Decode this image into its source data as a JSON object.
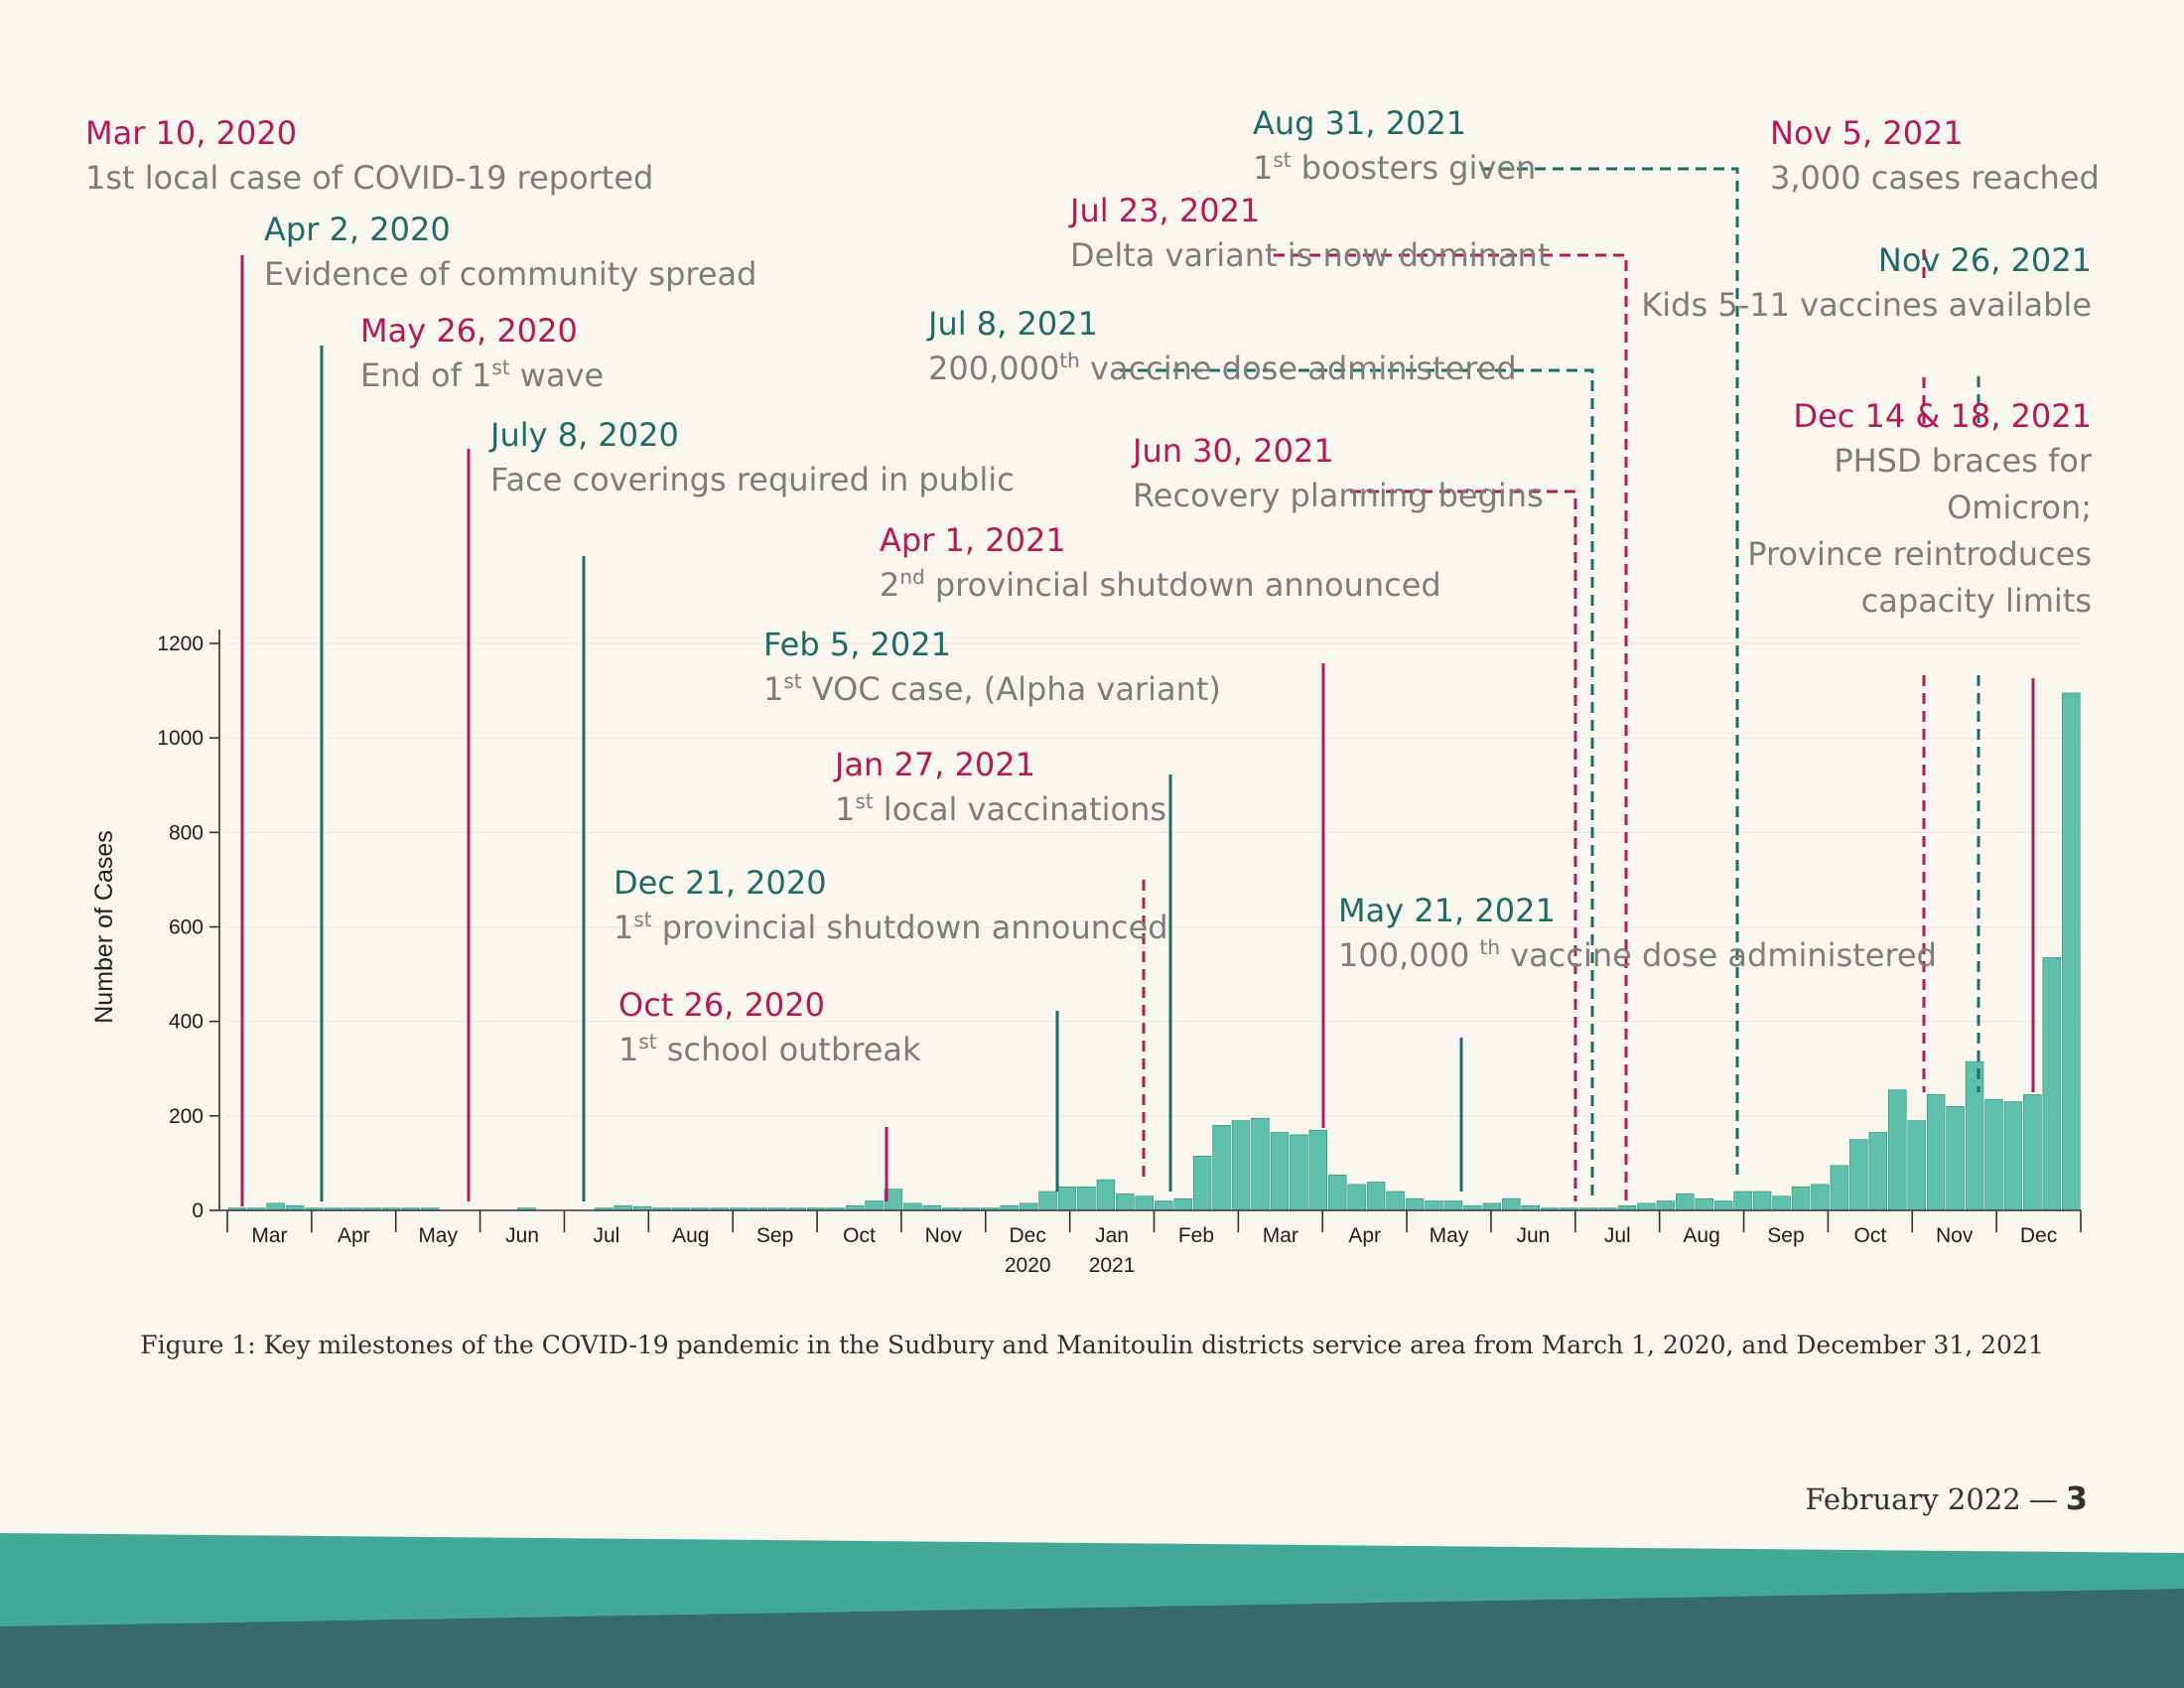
{
  "colors": {
    "magenta": "#b5195a",
    "teal": "#1f6b69",
    "bar_fill": "#5ec0aa",
    "bar_stroke": "#2a8c7b",
    "band_light": "#42a898",
    "band_dark": "#376c69"
  },
  "chart_data": {
    "type": "bar",
    "title": "",
    "xlabel": "",
    "ylabel": "Number of Cases",
    "ylim": [
      0,
      1200
    ],
    "yticks": [
      0,
      200,
      400,
      600,
      800,
      1000,
      1200
    ],
    "x_unit": "week",
    "month_labels": [
      "Mar",
      "Apr",
      "May",
      "Jun",
      "Jul",
      "Aug",
      "Sep",
      "Oct",
      "Nov",
      "Dec",
      "Jan",
      "Feb",
      "Mar",
      "Apr",
      "May",
      "Jun",
      "Jul",
      "Aug",
      "Sep",
      "Oct",
      "Nov",
      "Dec"
    ],
    "year_labels": [
      {
        "month_index": 9,
        "label": "2020"
      },
      {
        "month_index": 10,
        "label": "2021"
      }
    ],
    "values": [
      5,
      5,
      15,
      10,
      5,
      5,
      5,
      5,
      5,
      5,
      5,
      0,
      0,
      0,
      0,
      5,
      0,
      0,
      0,
      5,
      10,
      8,
      5,
      5,
      5,
      5,
      5,
      5,
      5,
      5,
      5,
      5,
      10,
      20,
      45,
      15,
      10,
      5,
      5,
      5,
      10,
      15,
      40,
      50,
      50,
      65,
      35,
      30,
      20,
      25,
      115,
      180,
      190,
      195,
      165,
      160,
      170,
      75,
      55,
      60,
      40,
      25,
      20,
      20,
      10,
      15,
      25,
      10,
      5,
      5,
      5,
      5,
      10,
      15,
      20,
      35,
      25,
      20,
      40,
      40,
      30,
      50,
      55,
      95,
      150,
      165,
      255,
      190,
      245,
      220,
      315,
      235,
      230,
      245,
      535,
      1095
    ],
    "annotations": [
      {
        "date": "Mar 10, 2020",
        "text": "1st local case of COVID-19 reported",
        "sup": "",
        "text_after": "",
        "color": "magenta"
      },
      {
        "date": "Apr 2, 2020",
        "text": "Evidence of community spread",
        "sup": "",
        "text_after": "",
        "color": "teal"
      },
      {
        "date": "May 26, 2020",
        "text": "End of 1",
        "sup": "st",
        "text_after": " wave",
        "color": "magenta"
      },
      {
        "date": "July 8, 2020",
        "text": "Face coverings required in public",
        "sup": "",
        "text_after": "",
        "color": "teal"
      },
      {
        "date": "Oct 26, 2020",
        "text": "1",
        "sup": "st",
        "text_after": " school outbreak",
        "color": "magenta"
      },
      {
        "date": "Dec 21, 2020",
        "text": "1",
        "sup": "st",
        "text_after": " provincial shutdown announced",
        "color": "teal"
      },
      {
        "date": "Jan 27, 2021",
        "text": "1",
        "sup": "st",
        "text_after": " local vaccinations",
        "color": "magenta"
      },
      {
        "date": "Feb 5, 2021",
        "text": "1",
        "sup": "st",
        "text_after": " VOC case, (Alpha variant)",
        "color": "teal"
      },
      {
        "date": "Apr 1, 2021",
        "text": "2",
        "sup": "nd",
        "text_after": " provincial shutdown announced",
        "color": "magenta"
      },
      {
        "date": "May 21, 2021",
        "text": "100,000 ",
        "sup": "th",
        "text_after": " vaccine dose administered",
        "color": "teal"
      },
      {
        "date": "Jun 30, 2021",
        "text": "Recovery planning begins",
        "sup": "",
        "text_after": "",
        "color": "magenta"
      },
      {
        "date": "Jul 8, 2021",
        "text": "200,000",
        "sup": "th",
        "text_after": " vaccine dose administered",
        "color": "teal"
      },
      {
        "date": "Jul 23, 2021",
        "text": "Delta variant is now dominant",
        "sup": "",
        "text_after": "",
        "color": "magenta"
      },
      {
        "date": "Aug 31, 2021",
        "text": "1",
        "sup": "st",
        "text_after": " boosters given",
        "color": "teal"
      },
      {
        "date": "Nov 5, 2021",
        "text": "3,000 cases reached",
        "sup": "",
        "text_after": "",
        "color": "magenta"
      },
      {
        "date": "Nov 26, 2021",
        "text": "Kids 5-11 vaccines available",
        "sup": "",
        "text_after": "",
        "color": "teal"
      },
      {
        "date": "Dec 14 & 18, 2021",
        "text_lines": [
          "PHSD braces for",
          "Omicron;",
          "Province reintroduces",
          "capacity limits"
        ],
        "color": "magenta"
      }
    ]
  },
  "caption": "Figure 1: Key milestones of the COVID-19 pandemic in the Sudbury and Manitoulin districts service area from March 1, 2020, and December 31, 2021",
  "footer": {
    "date": "February 2022",
    "separator": "—",
    "page_number": "3"
  }
}
